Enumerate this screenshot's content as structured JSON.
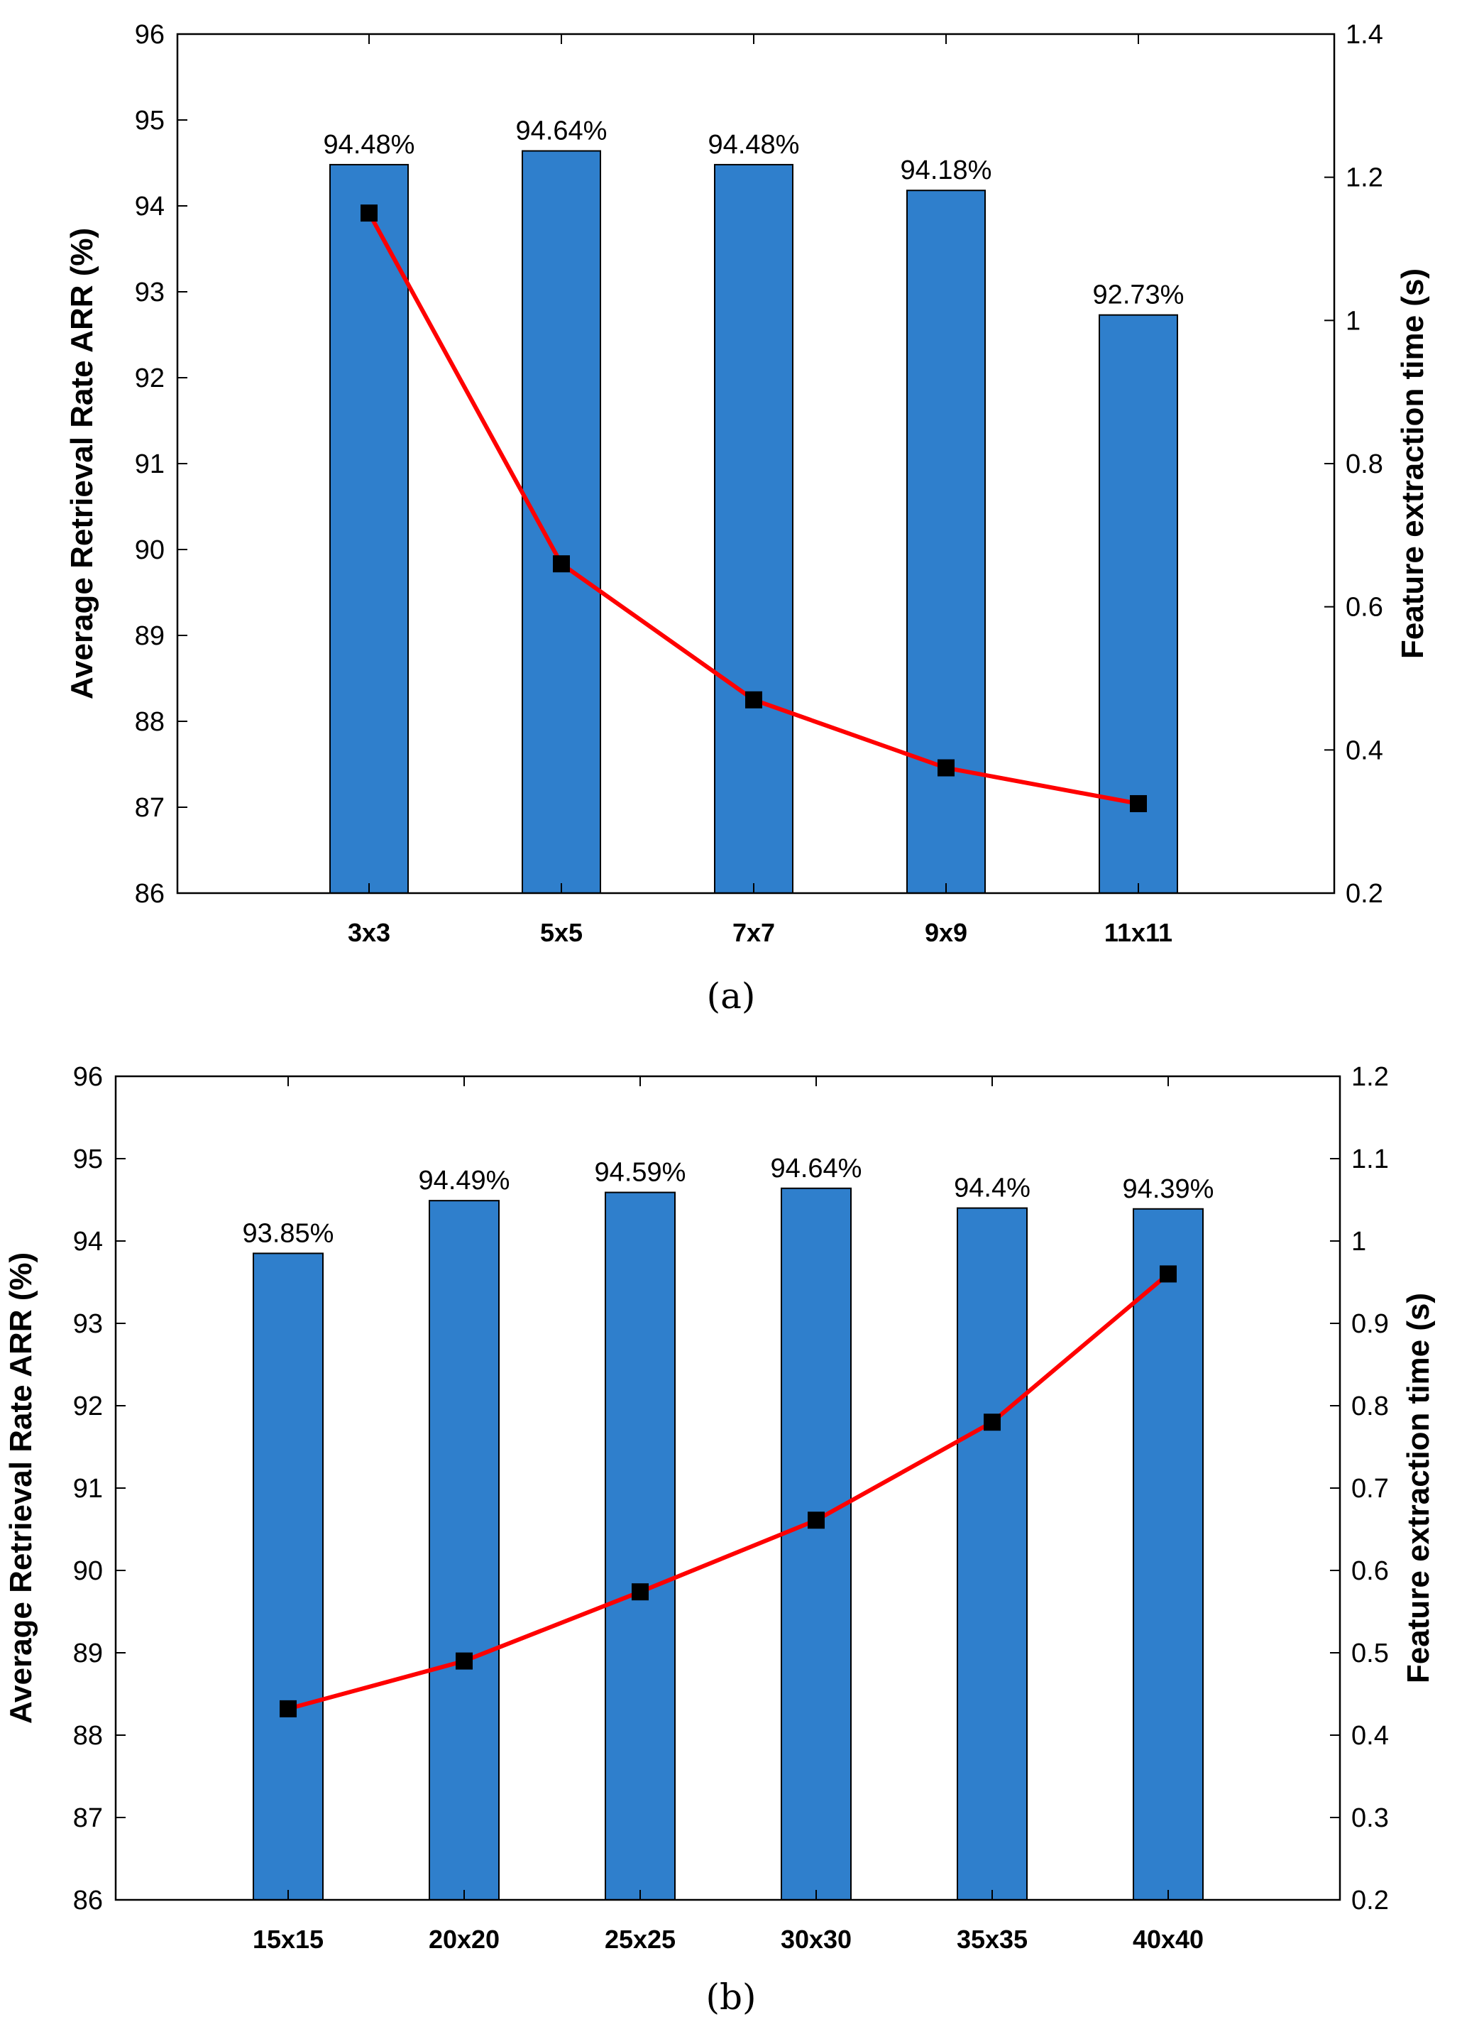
{
  "chart_data": [
    {
      "type": "bar",
      "caption": "(a)",
      "categories": [
        "3x3",
        "5x5",
        "7x7",
        "9x9",
        "11x11"
      ],
      "series": [
        {
          "values": [
            94.48,
            94.64,
            94.48,
            94.18,
            92.73
          ],
          "axis": "left",
          "color": "#2f7fcc"
        },
        {
          "values": [
            1.15,
            0.66,
            0.47,
            0.375,
            0.325
          ],
          "axis": "right",
          "type": "line",
          "color": "#ff0000",
          "marker": "square"
        }
      ],
      "data_labels": [
        "94.48%",
        "94.64%",
        "94.48%",
        "94.18%",
        "92.73%"
      ],
      "ylabel": "Average Retrieval Rate ARR (%)",
      "ylabel_right": "Feature extraction time (s)",
      "ylim": [
        86,
        96
      ],
      "yticks": [
        "86",
        "87",
        "88",
        "89",
        "90",
        "91",
        "92",
        "93",
        "94",
        "95",
        "96"
      ],
      "ylim_right": [
        0.2,
        1.4
      ],
      "yticks_right": [
        "0.2",
        "0.4",
        "0.6",
        "0.8",
        "1",
        "1.2",
        "1.4"
      ],
      "grid": false
    },
    {
      "type": "bar",
      "caption": "(b)",
      "categories": [
        "15x15",
        "20x20",
        "25x25",
        "30x30",
        "35x35",
        "40x40"
      ],
      "series": [
        {
          "values": [
            93.85,
            94.49,
            94.59,
            94.64,
            94.4,
            94.39
          ],
          "axis": "left",
          "color": "#2f7fcc"
        },
        {
          "values": [
            0.432,
            0.49,
            0.574,
            0.661,
            0.78,
            0.96
          ],
          "axis": "right",
          "type": "line",
          "color": "#ff0000",
          "marker": "square"
        }
      ],
      "data_labels": [
        "93.85%",
        "94.49%",
        "94.59%",
        "94.64%",
        "94.4%",
        "94.39%"
      ],
      "ylabel": "Average Retrieval Rate ARR (%)",
      "ylabel_right": "Feature extraction time (s)",
      "ylim": [
        86,
        96
      ],
      "yticks": [
        "86",
        "87",
        "88",
        "89",
        "90",
        "91",
        "92",
        "93",
        "94",
        "95",
        "96"
      ],
      "ylim_right": [
        0.2,
        1.2
      ],
      "yticks_right": [
        "0.2",
        "0.3",
        "0.4",
        "0.5",
        "0.6",
        "0.7",
        "0.8",
        "0.9",
        "1",
        "1.1",
        "1.2"
      ],
      "grid": false
    }
  ]
}
